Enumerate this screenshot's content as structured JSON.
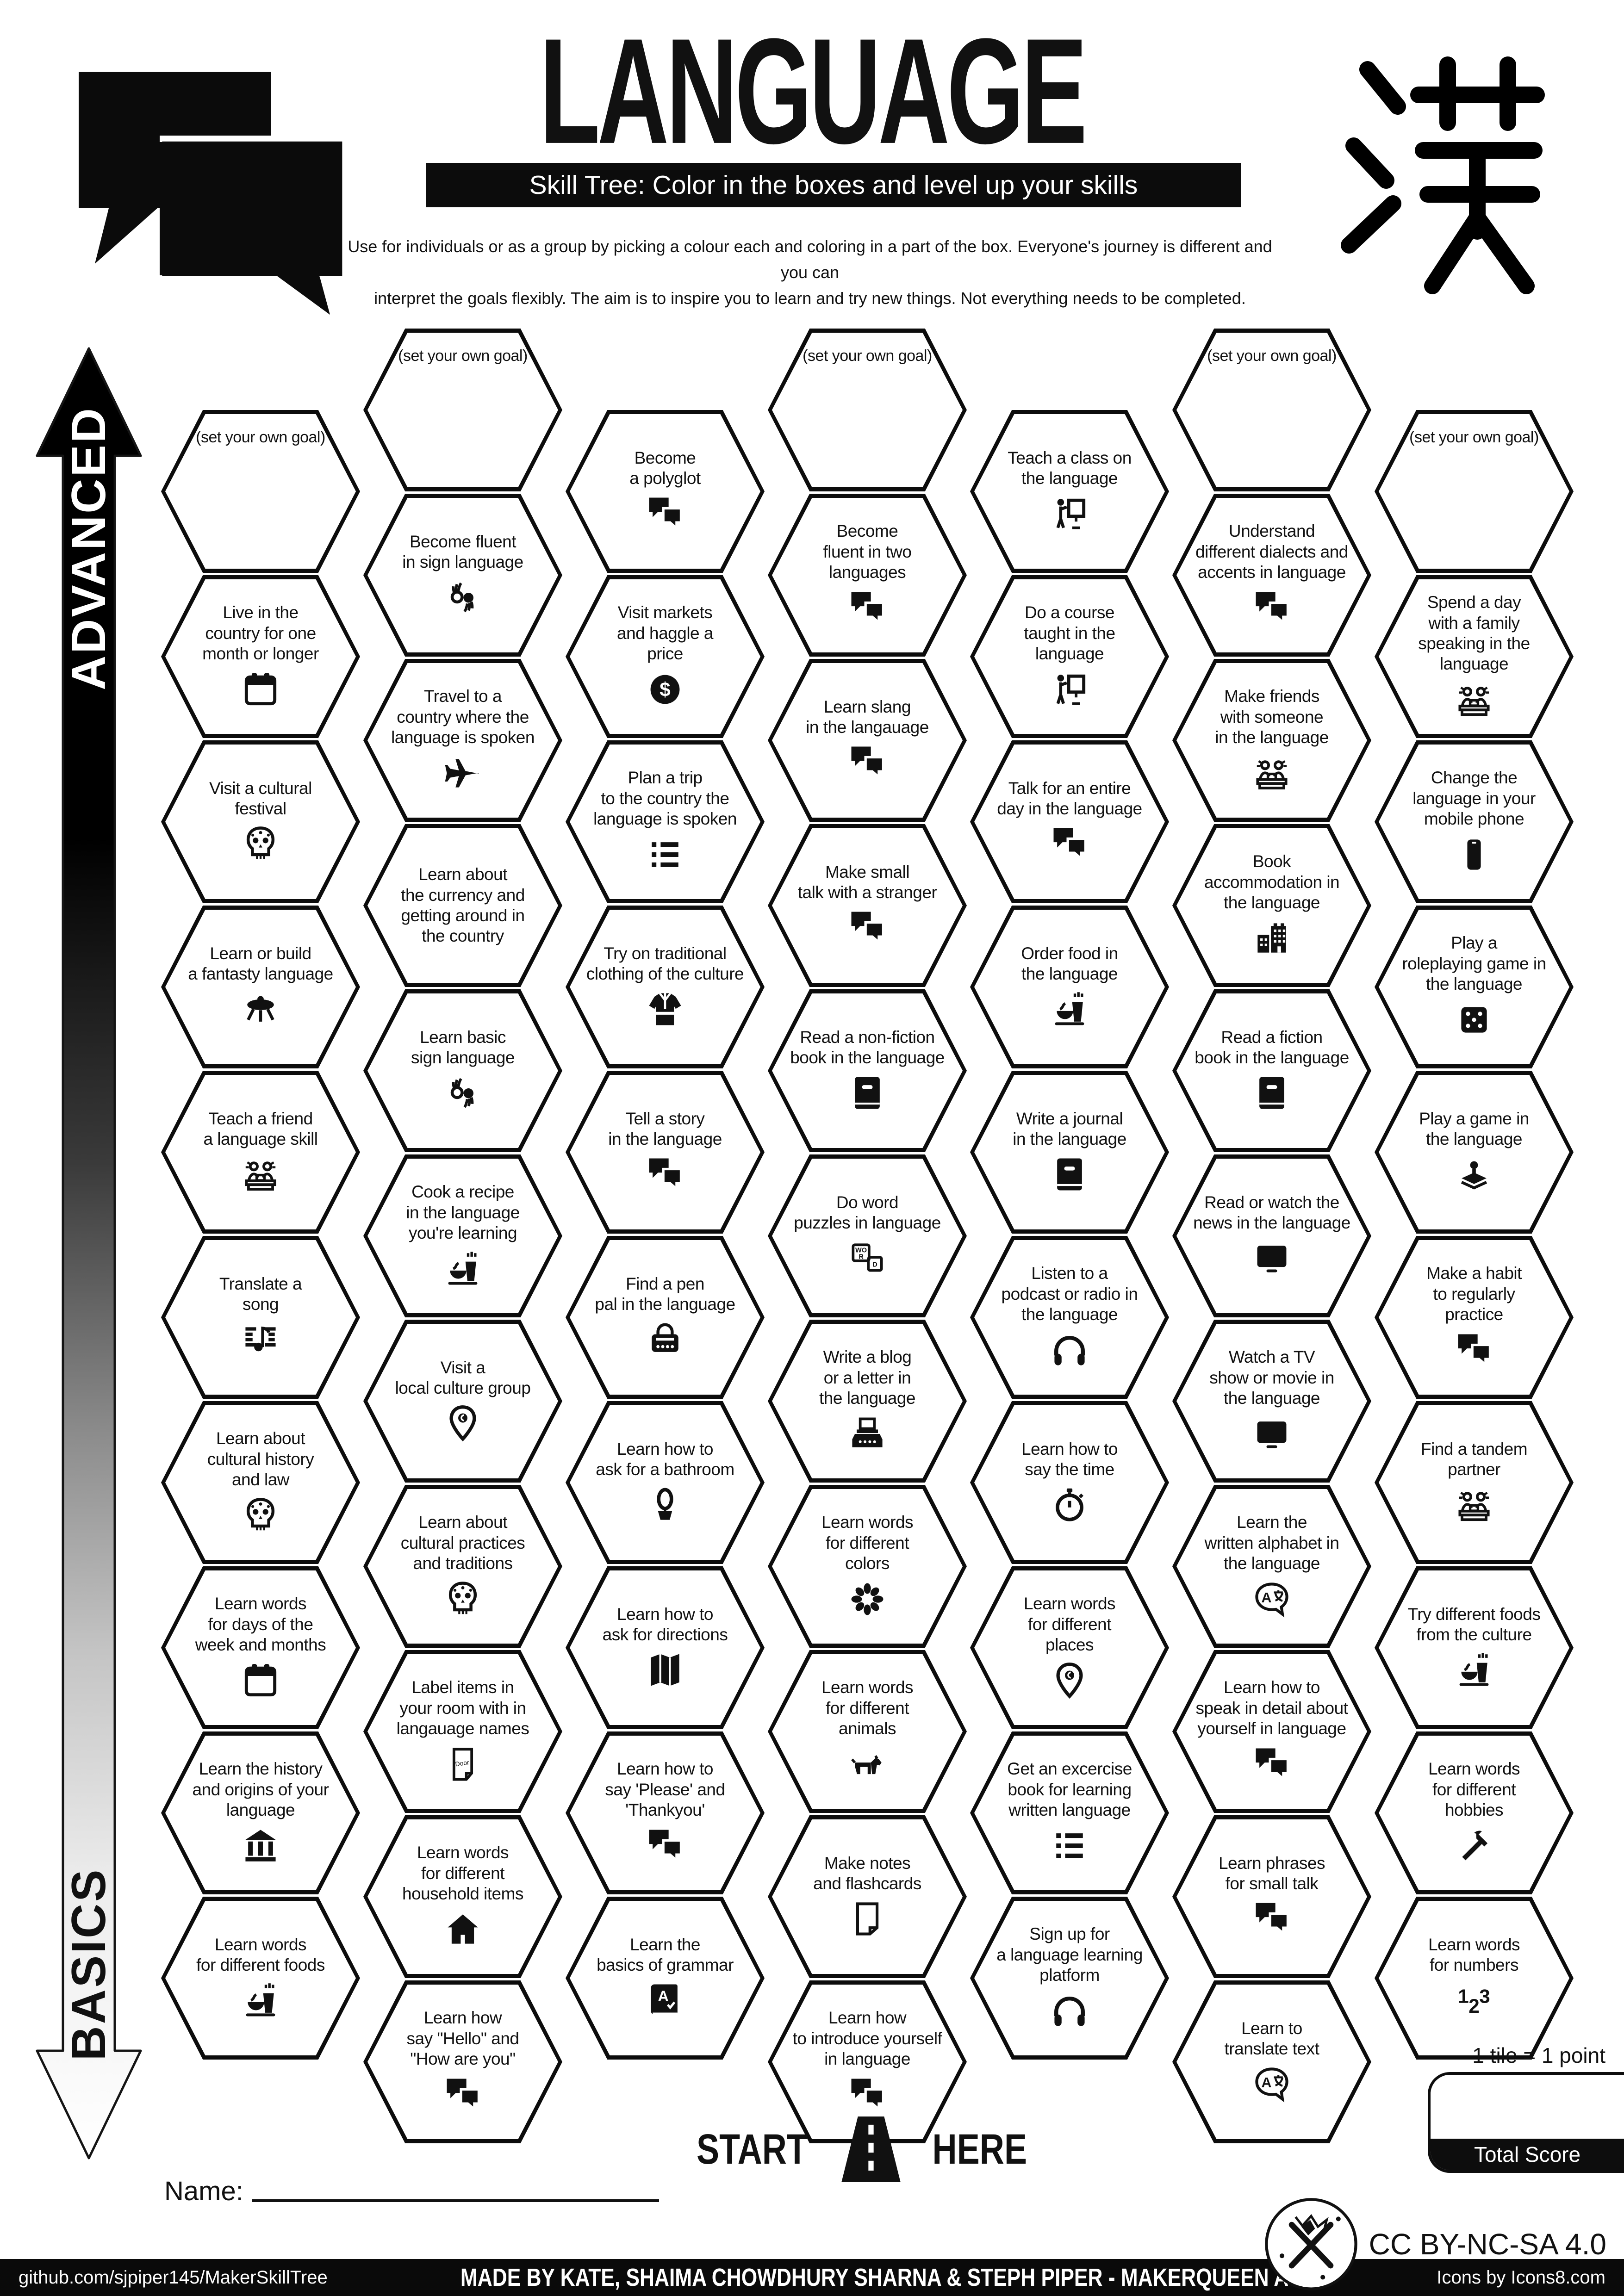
{
  "header": {
    "title": "LANGUAGE",
    "subtitle": "Skill Tree:  Color in the boxes and level up your skills",
    "description_line1": "Use for individuals or as a group by picking a colour each and coloring in a part of the box.  Everyone's journey is different and you can",
    "description_line2": "interpret the goals flexibly.  The aim is to inspire you to learn and try new things. Not everything needs to be completed.",
    "kanji": "漢"
  },
  "axis": {
    "top": "ADVANCED",
    "bottom": "BASICS"
  },
  "goal_label": "(set your own goal)",
  "start_marker": {
    "start": "START",
    "here": "HERE"
  },
  "name_label": "Name:",
  "scoring": {
    "tile_note": "1 tile = 1 point",
    "total_label": "Total Score"
  },
  "license": "CC BY-NC-SA 4.0",
  "footer": {
    "left": "github.com/sjpiper145/MakerSkillTree",
    "center": "MADE BY KATE, SHAIMA CHOWDHURY SHARNA & STEPH PIPER  -  MAKERQUEEN AU",
    "right": "Icons by Icons8.com"
  },
  "colors": {
    "ink": "#0c0c0c",
    "paper": "#ffffff"
  },
  "hexes": [
    {
      "col": 1,
      "row": 0,
      "goal": true
    },
    {
      "col": 1,
      "row": 1,
      "label": "Live in the\ncountry for one\nmonth or longer",
      "icon": "calendar"
    },
    {
      "col": 1,
      "row": 2,
      "label": "Visit a cultural\nfestival",
      "icon": "sugar-skull"
    },
    {
      "col": 1,
      "row": 3,
      "label": "Learn or build\na fantasty language",
      "icon": "starship"
    },
    {
      "col": 1,
      "row": 4,
      "label": "Teach a friend\na language skill",
      "icon": "study-group"
    },
    {
      "col": 1,
      "row": 5,
      "label": "Translate a\nsong",
      "icon": "song-translate"
    },
    {
      "col": 1,
      "row": 6,
      "label": "Learn about\ncultural history\nand law",
      "icon": "sugar-skull"
    },
    {
      "col": 1,
      "row": 7,
      "label": "Learn words\nfor days of the\nweek and months",
      "icon": "calendar"
    },
    {
      "col": 1,
      "row": 8,
      "label": "Learn the history\nand origins of your\nlanguage",
      "icon": "museum"
    },
    {
      "col": 1,
      "row": 9,
      "label": "Learn words\nfor different foods",
      "icon": "food"
    },
    {
      "col": 2,
      "row": 0,
      "goal": true
    },
    {
      "col": 2,
      "row": 1,
      "label": "Become fluent\nin sign language",
      "icon": "sign-hands"
    },
    {
      "col": 2,
      "row": 2,
      "label": "Travel to a\ncountry where the\nlanguage is spoken",
      "icon": "airplane"
    },
    {
      "col": 2,
      "row": 3,
      "label": "Learn about\nthe currency and\ngetting around in\nthe country"
    },
    {
      "col": 2,
      "row": 4,
      "label": "Learn basic\nsign language",
      "icon": "sign-hands"
    },
    {
      "col": 2,
      "row": 5,
      "label": "Cook a recipe\nin the language\nyou're learning",
      "icon": "food"
    },
    {
      "col": 2,
      "row": 6,
      "label": "Visit a\nlocal culture group",
      "icon": "map-pin"
    },
    {
      "col": 2,
      "row": 7,
      "label": "Learn about\ncultural practices\nand traditions",
      "icon": "sugar-skull"
    },
    {
      "col": 2,
      "row": 8,
      "label": "Label items in\nyour room with in\nlangauage names",
      "icon": "door-label"
    },
    {
      "col": 2,
      "row": 9,
      "label": "Learn words\nfor different\nhousehold items",
      "icon": "house"
    },
    {
      "col": 2,
      "row": 10,
      "label": "Learn how\nsay \"Hello\" and\n\"How are you\"",
      "icon": "speech-bubbles"
    },
    {
      "col": 3,
      "row": 0,
      "label": "Become\na polyglot",
      "icon": "speech-bubbles"
    },
    {
      "col": 3,
      "row": 1,
      "label": "Visit markets\nand haggle a\nprice",
      "icon": "dollar-coin"
    },
    {
      "col": 3,
      "row": 2,
      "label": "Plan a trip\nto the country the\nlanguage is spoken",
      "icon": "bullet-list"
    },
    {
      "col": 3,
      "row": 3,
      "label": "Try on traditional\nclothing of the culture",
      "icon": "kimono"
    },
    {
      "col": 3,
      "row": 4,
      "label": "Tell a story\nin the language",
      "icon": "speech-bubbles"
    },
    {
      "col": 3,
      "row": 5,
      "label": "Find a pen\npal in the language",
      "icon": "mailbox"
    },
    {
      "col": 3,
      "row": 6,
      "label": "Learn how to\nask for a bathroom",
      "icon": "toilet"
    },
    {
      "col": 3,
      "row": 7,
      "label": "Learn how to\nask for directions",
      "icon": "folded-map"
    },
    {
      "col": 3,
      "row": 8,
      "label": "Learn how to\nsay 'Please' and\n'Thankyou'",
      "icon": "speech-bubbles"
    },
    {
      "col": 3,
      "row": 9,
      "label": "Learn the\nbasics of grammar",
      "icon": "grammar-book"
    },
    {
      "col": 4,
      "row": 0,
      "goal": true
    },
    {
      "col": 4,
      "row": 1,
      "label": "Become\nfluent in two\nlanguages",
      "icon": "speech-bubbles"
    },
    {
      "col": 4,
      "row": 2,
      "label": "Learn slang\nin the langauage",
      "icon": "speech-bubbles"
    },
    {
      "col": 4,
      "row": 3,
      "label": "Make small\ntalk with a stranger",
      "icon": "speech-bubbles"
    },
    {
      "col": 4,
      "row": 4,
      "label": "Read a non-fiction\nbook in the language",
      "icon": "book"
    },
    {
      "col": 4,
      "row": 5,
      "label": "Do word\npuzzles in language",
      "icon": "word-blocks"
    },
    {
      "col": 4,
      "row": 6,
      "label": "Write a blog\nor a letter in\nthe language",
      "icon": "typewriter"
    },
    {
      "col": 4,
      "row": 7,
      "label": "Learn words\nfor different\ncolors",
      "icon": "color-wheel"
    },
    {
      "col": 4,
      "row": 8,
      "label": "Learn words\nfor different\nanimals",
      "icon": "dog"
    },
    {
      "col": 4,
      "row": 9,
      "label": "Make notes\nand flashcards",
      "icon": "note-page"
    },
    {
      "col": 4,
      "row": 10,
      "label": "Learn how\nto introduce yourself\nin language",
      "icon": "speech-bubbles"
    },
    {
      "col": 5,
      "row": 0,
      "label": "Teach a class on\nthe language",
      "icon": "teacher-board"
    },
    {
      "col": 5,
      "row": 1,
      "label": "Do a course\ntaught in the\nlanguage",
      "icon": "teacher-board"
    },
    {
      "col": 5,
      "row": 2,
      "label": "Talk for an entire\nday in the language",
      "icon": "speech-bubbles"
    },
    {
      "col": 5,
      "row": 3,
      "label": "Order food in\nthe language",
      "icon": "food"
    },
    {
      "col": 5,
      "row": 4,
      "label": "Write a journal\nin the language",
      "icon": "book"
    },
    {
      "col": 5,
      "row": 5,
      "label": "Listen to a\npodcast or radio in\nthe language",
      "icon": "headphones"
    },
    {
      "col": 5,
      "row": 6,
      "label": "Learn how to\nsay the time",
      "icon": "stopwatch"
    },
    {
      "col": 5,
      "row": 7,
      "label": "Learn words\nfor different\nplaces",
      "icon": "map-pin"
    },
    {
      "col": 5,
      "row": 8,
      "label": "Get an excercise\nbook for learning\nwritten language",
      "icon": "bullet-list"
    },
    {
      "col": 5,
      "row": 9,
      "label": "Sign up for\na language learning\nplatform",
      "icon": "headphones"
    },
    {
      "col": 6,
      "row": 0,
      "goal": true
    },
    {
      "col": 6,
      "row": 1,
      "label": "Understand\ndifferent dialects and\naccents in language",
      "icon": "speech-bubbles"
    },
    {
      "col": 6,
      "row": 2,
      "label": "Make friends\nwith someone\nin the language",
      "icon": "study-group"
    },
    {
      "col": 6,
      "row": 3,
      "label": "Book\naccommodation in\nthe language",
      "icon": "hotel"
    },
    {
      "col": 6,
      "row": 4,
      "label": "Read a fiction\nbook in the language",
      "icon": "book"
    },
    {
      "col": 6,
      "row": 5,
      "label": "Read or watch the\nnews in the language",
      "icon": "tv-monitor"
    },
    {
      "col": 6,
      "row": 6,
      "label": "Watch a TV\nshow or movie in\nthe language",
      "icon": "tv-monitor"
    },
    {
      "col": 6,
      "row": 7,
      "label": "Learn the\nwritten alphabet in\nthe language",
      "icon": "translate-bubble"
    },
    {
      "col": 6,
      "row": 8,
      "label": "Learn how to\nspeak in detail about\nyourself in language",
      "icon": "speech-bubbles"
    },
    {
      "col": 6,
      "row": 9,
      "label": "Learn phrases\nfor small talk",
      "icon": "speech-bubbles"
    },
    {
      "col": 6,
      "row": 10,
      "label": "Learn to\ntranslate text",
      "icon": "translate-bubble"
    },
    {
      "col": 7,
      "row": 0,
      "goal": true
    },
    {
      "col": 7,
      "row": 1,
      "label": "Spend a day\nwith a family\nspeaking in the language",
      "icon": "study-group"
    },
    {
      "col": 7,
      "row": 2,
      "label": "Change the\nlanguage in your\nmobile phone",
      "icon": "smartphone"
    },
    {
      "col": 7,
      "row": 3,
      "label": "Play a\nroleplaying game in\nthe language",
      "icon": "dice"
    },
    {
      "col": 7,
      "row": 4,
      "label": "Play a game in\nthe language",
      "icon": "joystick"
    },
    {
      "col": 7,
      "row": 5,
      "label": "Make a habit\nto regularly\npractice",
      "icon": "speech-bubbles"
    },
    {
      "col": 7,
      "row": 6,
      "label": "Find a tandem\npartner",
      "icon": "study-group"
    },
    {
      "col": 7,
      "row": 7,
      "label": "Try different foods\nfrom the culture",
      "icon": "food"
    },
    {
      "col": 7,
      "row": 8,
      "label": "Learn words\nfor different\nhobbies",
      "icon": "hammer"
    },
    {
      "col": 7,
      "row": 9,
      "label": "Learn words\nfor numbers",
      "icon": "one-two-three"
    }
  ]
}
